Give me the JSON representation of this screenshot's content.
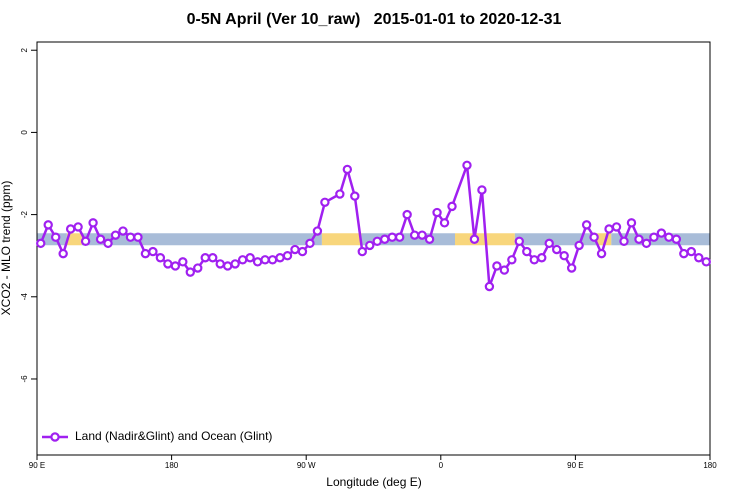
{
  "chart_data": {
    "type": "line",
    "title": "0-5N April (Ver 10_raw)   2015-01-01 to 2020-12-31",
    "xlabel": "Longitude (deg E)",
    "ylabel": "XCO2 - MLO trend (ppm)",
    "xlim": [
      90,
      540
    ],
    "ylim": [
      -7.85,
      2.2
    ],
    "xticks": [
      {
        "value": 90,
        "label": "90 E"
      },
      180,
      {
        "value": 270,
        "label": "90 W"
      },
      {
        "value": 360,
        "label": "0"
      },
      {
        "value": 450,
        "label": "90 E"
      },
      {
        "value": 540,
        "label": "180"
      }
    ],
    "yticks": [
      2,
      0,
      -2,
      -4,
      -6
    ],
    "grid": false,
    "legend": "bottomleft",
    "band": {
      "value": -2.6,
      "segments": [
        {
          "start": 90,
          "end": 110,
          "color": "#a8bcd8"
        },
        {
          "start": 110,
          "end": 120,
          "color": "#f8d67c"
        },
        {
          "start": 120,
          "end": 280.5,
          "color": "#a8bcd8"
        },
        {
          "start": 280.5,
          "end": 307,
          "color": "#f8d67c"
        },
        {
          "start": 307,
          "end": 369.5,
          "color": "#a8bcd8"
        },
        {
          "start": 369.5,
          "end": 409.5,
          "color": "#f8d67c"
        },
        {
          "start": 409.5,
          "end": 464,
          "color": "#a8bcd8"
        },
        {
          "start": 464,
          "end": 474,
          "color": "#f8d67c"
        },
        {
          "start": 474,
          "end": 540,
          "color": "#a8bcd8"
        }
      ]
    },
    "series": [
      {
        "name": "Land (Nadir&Glint) and Ocean (Glint)",
        "color": "#a020f0",
        "x": [
          92.5,
          97.5,
          102.5,
          107.5,
          112.5,
          117.5,
          122.5,
          127.5,
          132.5,
          137.5,
          142.5,
          147.5,
          152.5,
          157.5,
          162.5,
          167.5,
          172.5,
          177.5,
          182.5,
          187.5,
          192.5,
          197.5,
          202.5,
          207.5,
          212.5,
          217.5,
          222.5,
          227.5,
          232.5,
          237.5,
          242.5,
          247.5,
          252.5,
          257.5,
          262.5,
          267.5,
          272.5,
          277.5,
          282.5,
          292.5,
          297.5,
          302.5,
          307.5,
          312.5,
          317.5,
          322.5,
          327.5,
          332.5,
          337.5,
          342.5,
          347.5,
          352.5,
          357.5,
          362.5,
          367.5,
          377.5,
          382.5,
          387.5,
          392.5,
          397.5,
          402.5,
          407.5,
          412.5,
          417.5,
          422.5,
          427.5,
          432.5,
          437.5,
          442.5,
          447.5,
          452.5,
          457.5,
          462.5,
          467.5,
          472.5,
          477.5,
          482.5,
          487.5,
          492.5,
          497.5,
          502.5,
          507.5,
          512.5,
          517.5,
          522.5,
          527.5,
          532.5,
          537.5
        ],
        "values": [
          -2.7,
          -2.25,
          -2.55,
          -2.95,
          -2.35,
          -2.3,
          -2.65,
          -2.2,
          -2.6,
          -2.7,
          -2.5,
          -2.4,
          -2.55,
          -2.55,
          -2.95,
          -2.9,
          -3.05,
          -3.2,
          -3.25,
          -3.15,
          -3.4,
          -3.3,
          -3.05,
          -3.05,
          -3.2,
          -3.25,
          -3.2,
          -3.1,
          -3.05,
          -3.15,
          -3.1,
          -3.1,
          -3.05,
          -3.0,
          -2.85,
          -2.9,
          -2.7,
          -2.4,
          -1.7,
          -1.5,
          -0.9,
          -1.55,
          -2.9,
          -2.75,
          -2.65,
          -2.6,
          -2.55,
          -2.55,
          -2.0,
          -2.5,
          -2.5,
          -2.6,
          -1.95,
          -2.2,
          -1.8,
          -0.8,
          -2.6,
          -1.4,
          -3.75,
          -3.25,
          -3.35,
          -3.1,
          -2.65,
          -2.9,
          -3.1,
          -3.05,
          -2.7,
          -2.85,
          -3.0,
          -3.3,
          -2.75,
          -2.25,
          -2.55,
          -2.95,
          -2.35,
          -2.3,
          -2.65,
          -2.2,
          -2.6,
          -2.7,
          -2.55,
          -2.45,
          -2.55,
          -2.6,
          -2.95,
          -2.9,
          -3.05,
          -3.15
        ]
      }
    ]
  }
}
